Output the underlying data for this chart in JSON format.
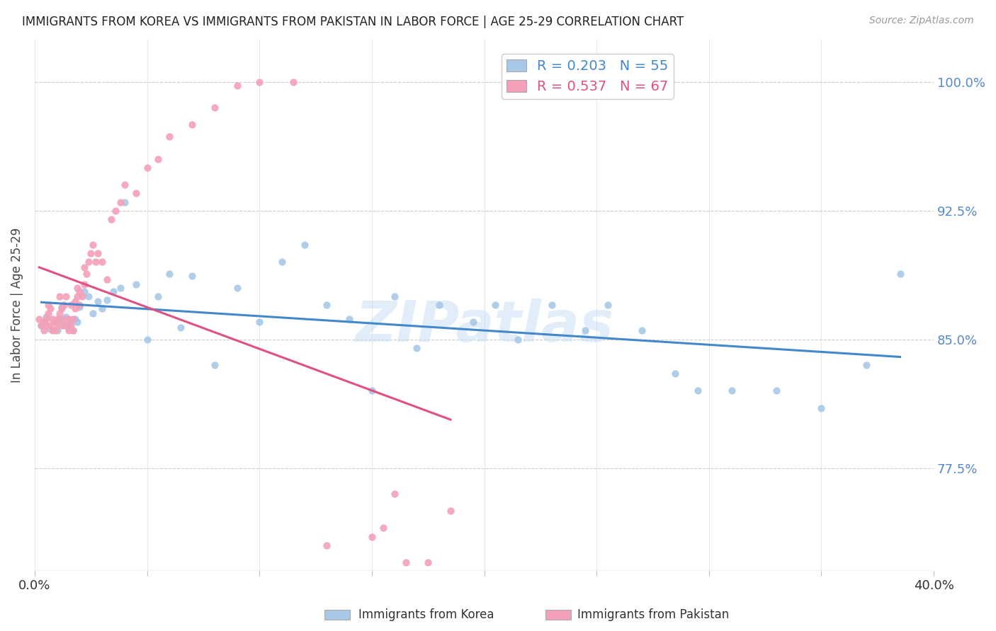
{
  "title": "IMMIGRANTS FROM KOREA VS IMMIGRANTS FROM PAKISTAN IN LABOR FORCE | AGE 25-29 CORRELATION CHART",
  "source": "Source: ZipAtlas.com",
  "ylabel": "In Labor Force | Age 25-29",
  "xlim": [
    0.0,
    0.4
  ],
  "ylim": [
    0.715,
    1.025
  ],
  "yticks": [
    0.775,
    0.85,
    0.925,
    1.0
  ],
  "ytick_labels": [
    "77.5%",
    "85.0%",
    "92.5%",
    "100.0%"
  ],
  "xticks": [
    0.0,
    0.05,
    0.1,
    0.15,
    0.2,
    0.25,
    0.3,
    0.35,
    0.4
  ],
  "xtick_labels": [
    "0.0%",
    "",
    "",
    "",
    "",
    "",
    "",
    "",
    "40.0%"
  ],
  "korea_color": "#a8c8e8",
  "pakistan_color": "#f4a0b8",
  "trend_korea_color": "#4488cc",
  "trend_pakistan_color": "#e05080",
  "korea_R": 0.203,
  "korea_N": 55,
  "pakistan_R": 0.537,
  "pakistan_N": 67,
  "watermark": "ZIPatlas",
  "korea_x": [
    0.003,
    0.005,
    0.007,
    0.009,
    0.01,
    0.011,
    0.012,
    0.013,
    0.014,
    0.015,
    0.016,
    0.017,
    0.018,
    0.019,
    0.02,
    0.022,
    0.024,
    0.026,
    0.028,
    0.03,
    0.032,
    0.035,
    0.038,
    0.04,
    0.045,
    0.05,
    0.055,
    0.06,
    0.065,
    0.07,
    0.08,
    0.09,
    0.1,
    0.11,
    0.12,
    0.13,
    0.14,
    0.15,
    0.16,
    0.17,
    0.18,
    0.195,
    0.205,
    0.215,
    0.23,
    0.245,
    0.255,
    0.27,
    0.285,
    0.295,
    0.31,
    0.33,
    0.35,
    0.37,
    0.385
  ],
  "korea_y": [
    0.858,
    0.863,
    0.856,
    0.86,
    0.855,
    0.862,
    0.869,
    0.858,
    0.863,
    0.857,
    0.86,
    0.855,
    0.862,
    0.86,
    0.869,
    0.878,
    0.875,
    0.865,
    0.872,
    0.868,
    0.873,
    0.878,
    0.88,
    0.93,
    0.882,
    0.85,
    0.875,
    0.888,
    0.857,
    0.887,
    0.835,
    0.88,
    0.86,
    0.895,
    0.905,
    0.87,
    0.862,
    0.82,
    0.875,
    0.845,
    0.87,
    0.86,
    0.87,
    0.85,
    0.87,
    0.855,
    0.87,
    0.855,
    0.83,
    0.82,
    0.82,
    0.82,
    0.81,
    0.835,
    0.888
  ],
  "pakistan_x": [
    0.002,
    0.003,
    0.004,
    0.004,
    0.005,
    0.005,
    0.006,
    0.006,
    0.007,
    0.007,
    0.008,
    0.008,
    0.009,
    0.009,
    0.01,
    0.01,
    0.011,
    0.011,
    0.012,
    0.012,
    0.013,
    0.013,
    0.014,
    0.014,
    0.015,
    0.015,
    0.016,
    0.016,
    0.017,
    0.017,
    0.018,
    0.018,
    0.019,
    0.019,
    0.02,
    0.02,
    0.021,
    0.022,
    0.022,
    0.023,
    0.024,
    0.025,
    0.026,
    0.027,
    0.028,
    0.03,
    0.032,
    0.034,
    0.036,
    0.038,
    0.04,
    0.045,
    0.05,
    0.055,
    0.06,
    0.07,
    0.08,
    0.09,
    0.1,
    0.115,
    0.13,
    0.15,
    0.155,
    0.16,
    0.165,
    0.175,
    0.185
  ],
  "pakistan_y": [
    0.862,
    0.858,
    0.86,
    0.855,
    0.858,
    0.862,
    0.87,
    0.865,
    0.868,
    0.858,
    0.855,
    0.862,
    0.86,
    0.855,
    0.858,
    0.862,
    0.875,
    0.865,
    0.868,
    0.858,
    0.87,
    0.862,
    0.875,
    0.858,
    0.862,
    0.855,
    0.87,
    0.858,
    0.862,
    0.855,
    0.868,
    0.872,
    0.88,
    0.875,
    0.878,
    0.87,
    0.875,
    0.892,
    0.882,
    0.888,
    0.895,
    0.9,
    0.905,
    0.895,
    0.9,
    0.895,
    0.885,
    0.92,
    0.925,
    0.93,
    0.94,
    0.935,
    0.95,
    0.955,
    0.968,
    0.975,
    0.985,
    0.998,
    1.0,
    1.0,
    0.73,
    0.735,
    0.74,
    0.76,
    0.72,
    0.72,
    0.75
  ]
}
